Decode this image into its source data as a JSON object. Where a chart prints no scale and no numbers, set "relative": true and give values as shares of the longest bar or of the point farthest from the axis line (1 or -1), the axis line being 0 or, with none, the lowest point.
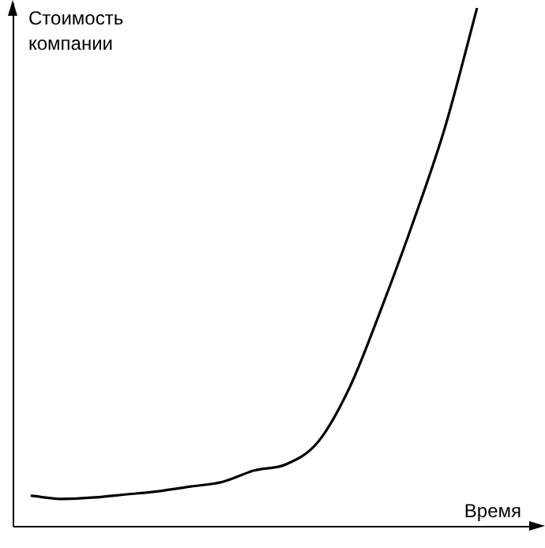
{
  "chart_data": {
    "type": "line",
    "relative": true,
    "ylabel": "Стоимость компании",
    "xlabel": "Время",
    "categories": [
      null,
      null,
      null,
      null,
      null,
      null,
      null,
      null,
      null,
      null,
      null,
      null,
      null,
      null,
      null
    ],
    "series": [
      {
        "color": "#000000",
        "values": [
          0.058,
          0.052,
          0.055,
          0.061,
          0.067,
          0.076,
          0.085,
          0.107,
          0.119,
          0.162,
          0.268,
          0.421,
          0.588,
          0.771,
          1.0
        ]
      }
    ],
    "legend": false,
    "marker": "none",
    "line_style": "solid"
  }
}
